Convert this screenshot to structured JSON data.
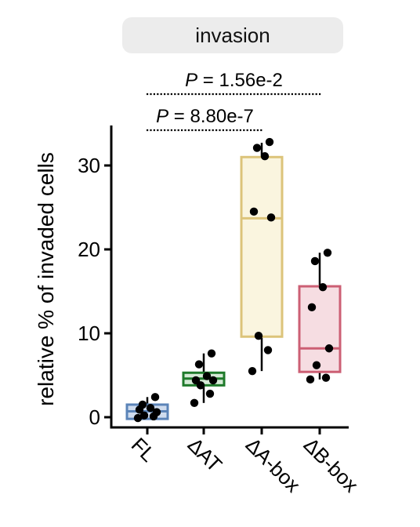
{
  "panel_title": "invasion",
  "chart_data": {
    "type": "box",
    "title": "invasion",
    "xlabel": "",
    "ylabel": "relative % of invaded cells",
    "ylim": [
      -1,
      34
    ],
    "yticks": [
      0,
      10,
      20,
      30
    ],
    "categories": [
      "FL",
      "ΔAT",
      "ΔA-box",
      "ΔB-box"
    ],
    "colors": {
      "FL": {
        "stroke": "#5b84b8",
        "fill": "#cfdcee"
      },
      "ΔAT": {
        "stroke": "#1f7a2b",
        "fill": "#d5ead6"
      },
      "ΔA-box": {
        "stroke": "#dcc47a",
        "fill": "#faf5df"
      },
      "ΔB-box": {
        "stroke": "#cc5f74",
        "fill": "#f6dde2"
      }
    },
    "boxes": [
      {
        "category": "FL",
        "whisker_low": -0.2,
        "q1": -0.2,
        "median": 0.7,
        "q3": 1.5,
        "whisker_high": 2.4
      },
      {
        "category": "ΔAT",
        "whisker_low": 1.7,
        "q1": 3.8,
        "median": 4.6,
        "q3": 5.3,
        "whisker_high": 7.6
      },
      {
        "category": "ΔA-box",
        "whisker_low": 5.5,
        "q1": 9.6,
        "median": 23.7,
        "q3": 31.0,
        "whisker_high": 32.7
      },
      {
        "category": "ΔB-box",
        "whisker_low": 4.5,
        "q1": 5.4,
        "median": 8.2,
        "q3": 15.6,
        "whisker_high": 19.6
      }
    ],
    "points": [
      {
        "category": "FL",
        "values": [
          -0.1,
          0.1,
          0.2,
          0.6,
          0.9,
          1.1,
          1.5,
          2.4
        ]
      },
      {
        "category": "ΔAT",
        "values": [
          1.7,
          2.8,
          3.8,
          4.4,
          4.4,
          4.9,
          6.3,
          7.6
        ]
      },
      {
        "category": "ΔA-box",
        "values": [
          5.5,
          8.0,
          9.7,
          23.8,
          24.5,
          31.1,
          32.1,
          32.8
        ]
      },
      {
        "category": "ΔB-box",
        "values": [
          4.5,
          4.7,
          6.2,
          8.2,
          13.1,
          15.5,
          18.6,
          19.6
        ]
      }
    ],
    "annotations": [
      {
        "label_prefix": "P",
        "label_value": " = 1.56e-2",
        "from": "FL",
        "to": "ΔA-box"
      },
      {
        "label_prefix": "P",
        "label_value": " = 8.80e-7",
        "from": "FL",
        "to": "ΔAT"
      }
    ]
  }
}
